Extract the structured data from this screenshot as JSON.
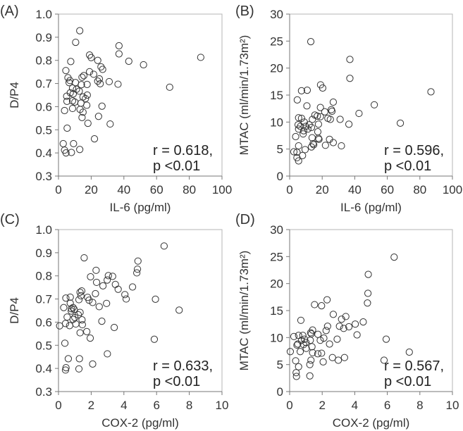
{
  "chart_data": [
    {
      "type": "scatter",
      "panel_label": "(A)",
      "xlabel": "IL-6 (pg/ml)",
      "ylabel": "D/P4",
      "xlim": [
        0,
        100
      ],
      "ylim": [
        0.3,
        1.0
      ],
      "xticks": [
        0,
        20,
        40,
        60,
        80,
        100
      ],
      "xtick_labels": [
        "0",
        "20",
        "40",
        "60",
        "80",
        "100"
      ],
      "yticks": [
        0.3,
        0.4,
        0.5,
        0.6,
        0.7,
        0.8,
        0.9,
        1.0
      ],
      "ytick_labels": [
        "0.3",
        "0.4",
        "0.5",
        "0.6",
        "0.7",
        "0.8",
        "0.9",
        "1.0"
      ],
      "annotation": [
        "r = 0.618,",
        "p <0.01"
      ],
      "points": [
        [
          13,
          0.928
        ],
        [
          10.5,
          0.878
        ],
        [
          37,
          0.863
        ],
        [
          37,
          0.828
        ],
        [
          19,
          0.823
        ],
        [
          20,
          0.812
        ],
        [
          24,
          0.8
        ],
        [
          43,
          0.796
        ],
        [
          52,
          0.781
        ],
        [
          87,
          0.813
        ],
        [
          7.5,
          0.795
        ],
        [
          26,
          0.772
        ],
        [
          27,
          0.761
        ],
        [
          4.5,
          0.756
        ],
        [
          19,
          0.751
        ],
        [
          21.5,
          0.74
        ],
        [
          15.5,
          0.734
        ],
        [
          14.4,
          0.727
        ],
        [
          5.8,
          0.725
        ],
        [
          7,
          0.713
        ],
        [
          25,
          0.72
        ],
        [
          24,
          0.71
        ],
        [
          31,
          0.708
        ],
        [
          6.5,
          0.704
        ],
        [
          10.4,
          0.704
        ],
        [
          17.5,
          0.696
        ],
        [
          25.5,
          0.699
        ],
        [
          36.4,
          0.697
        ],
        [
          68,
          0.684
        ],
        [
          14,
          0.695
        ],
        [
          8.6,
          0.68
        ],
        [
          11,
          0.675
        ],
        [
          12.7,
          0.667
        ],
        [
          7.2,
          0.66
        ],
        [
          9,
          0.655
        ],
        [
          17.6,
          0.65
        ],
        [
          5,
          0.645
        ],
        [
          15,
          0.642
        ],
        [
          16.5,
          0.635
        ],
        [
          8.6,
          0.625
        ],
        [
          5.2,
          0.623
        ],
        [
          10,
          0.62
        ],
        [
          13.7,
          0.615
        ],
        [
          17.3,
          0.606
        ],
        [
          26.6,
          0.602
        ],
        [
          8.6,
          0.592
        ],
        [
          13.2,
          0.588
        ],
        [
          15,
          0.576
        ],
        [
          3.7,
          0.583
        ],
        [
          14.4,
          0.553
        ],
        [
          24.5,
          0.558
        ],
        [
          18,
          0.528
        ],
        [
          31.6,
          0.525
        ],
        [
          5.3,
          0.507
        ],
        [
          22,
          0.461
        ],
        [
          2.9,
          0.44
        ],
        [
          9.2,
          0.44
        ],
        [
          3.7,
          0.412
        ],
        [
          4.6,
          0.4
        ],
        [
          7.9,
          0.402
        ],
        [
          13,
          0.415
        ]
      ]
    },
    {
      "type": "scatter",
      "panel_label": "(B)",
      "xlabel": "IL-6 (pg/ml)",
      "ylabel": "MTAC (ml/min/1.73m²)",
      "xlim": [
        0,
        100
      ],
      "ylim": [
        0,
        30
      ],
      "xticks": [
        0,
        20,
        40,
        60,
        80,
        100
      ],
      "xtick_labels": [
        "0",
        "20",
        "40",
        "60",
        "80",
        "100"
      ],
      "yticks": [
        0,
        5,
        10,
        15,
        20,
        25,
        30
      ],
      "ytick_labels": [
        "0",
        "5",
        "10",
        "15",
        "20",
        "25",
        "30"
      ],
      "annotation": [
        "r = 0.596,",
        "p <0.01"
      ],
      "points": [
        [
          13,
          24.9
        ],
        [
          37,
          21.6
        ],
        [
          37,
          18.1
        ],
        [
          19,
          16.9
        ],
        [
          20.3,
          16.3
        ],
        [
          7.3,
          15.8
        ],
        [
          10.8,
          15.9
        ],
        [
          86.8,
          15.6
        ],
        [
          4.7,
          14.1
        ],
        [
          26.8,
          13.7
        ],
        [
          52,
          13.2
        ],
        [
          10.6,
          13.0
        ],
        [
          18.9,
          12.7
        ],
        [
          25.6,
          12.3
        ],
        [
          26,
          12.0
        ],
        [
          21.6,
          11.9
        ],
        [
          42.6,
          11.6
        ],
        [
          15.5,
          11.3
        ],
        [
          17,
          11.1
        ],
        [
          18.9,
          11.0
        ],
        [
          23.5,
          10.7
        ],
        [
          25,
          10.5
        ],
        [
          31,
          10.5
        ],
        [
          5.5,
          10.8
        ],
        [
          7.3,
          10.7
        ],
        [
          14,
          10.5
        ],
        [
          68,
          9.8
        ],
        [
          36.4,
          9.6
        ],
        [
          17.7,
          9.6
        ],
        [
          9,
          10.0
        ],
        [
          12,
          9.5
        ],
        [
          5.2,
          9.5
        ],
        [
          6.6,
          9.2
        ],
        [
          9.8,
          9.2
        ],
        [
          13.4,
          9.0
        ],
        [
          5.5,
          8.7
        ],
        [
          11.2,
          8.7
        ],
        [
          8.6,
          8.4
        ],
        [
          17.3,
          8.2
        ],
        [
          8.3,
          7.8
        ],
        [
          3.7,
          7.3
        ],
        [
          13.8,
          7.1
        ],
        [
          17.7,
          7.0
        ],
        [
          18,
          6.8
        ],
        [
          24.5,
          6.8
        ],
        [
          26.8,
          6.2
        ],
        [
          14.4,
          6.0
        ],
        [
          14.8,
          5.8
        ],
        [
          22,
          5.7
        ],
        [
          31.8,
          5.6
        ],
        [
          5.5,
          5.6
        ],
        [
          13.4,
          5.4
        ],
        [
          9.5,
          4.9
        ],
        [
          2.6,
          4.5
        ],
        [
          4.5,
          4.4
        ],
        [
          7.9,
          3.8
        ],
        [
          4.5,
          3.4
        ],
        [
          5.5,
          2.8
        ]
      ]
    },
    {
      "type": "scatter",
      "panel_label": "(C)",
      "xlabel": "COX-2 (pg/ml)",
      "ylabel": "D/P4",
      "xlim": [
        0,
        10
      ],
      "ylim": [
        0.3,
        1.0
      ],
      "xticks": [
        0,
        2,
        4,
        6,
        8,
        10
      ],
      "xtick_labels": [
        "0",
        "2",
        "4",
        "6",
        "8",
        "10"
      ],
      "yticks": [
        0.3,
        0.4,
        0.5,
        0.6,
        0.7,
        0.8,
        0.9,
        1.0
      ],
      "ytick_labels": [
        "0.3",
        "0.4",
        "0.5",
        "0.6",
        "0.7",
        "0.8",
        "0.9",
        "1.0"
      ],
      "annotation": [
        "r = 0.633,",
        "p <0.01"
      ],
      "points": [
        [
          6.46,
          0.929
        ],
        [
          1.57,
          0.878
        ],
        [
          4.86,
          0.864
        ],
        [
          4.83,
          0.829
        ],
        [
          4.79,
          0.813
        ],
        [
          2.3,
          0.824
        ],
        [
          1.96,
          0.796
        ],
        [
          3.05,
          0.801
        ],
        [
          3.31,
          0.798
        ],
        [
          2.98,
          0.782
        ],
        [
          2.33,
          0.772
        ],
        [
          2.72,
          0.757
        ],
        [
          4.53,
          0.752
        ],
        [
          3.48,
          0.763
        ],
        [
          3.65,
          0.742
        ],
        [
          1.42,
          0.735
        ],
        [
          1.32,
          0.729
        ],
        [
          2.26,
          0.723
        ],
        [
          1.37,
          0.714
        ],
        [
          4.06,
          0.719
        ],
        [
          0.45,
          0.704
        ],
        [
          0.72,
          0.708
        ],
        [
          4.14,
          0.7
        ],
        [
          5.93,
          0.699
        ],
        [
          1.25,
          0.697
        ],
        [
          1.78,
          0.707
        ],
        [
          1.87,
          0.695
        ],
        [
          2.09,
          0.685
        ],
        [
          2.94,
          0.681
        ],
        [
          2.49,
          0.667
        ],
        [
          0.32,
          0.663
        ],
        [
          0.72,
          0.682
        ],
        [
          0.79,
          0.658
        ],
        [
          0.89,
          0.663
        ],
        [
          0.96,
          0.655
        ],
        [
          0.78,
          0.648
        ],
        [
          7.38,
          0.652
        ],
        [
          1.32,
          0.642
        ],
        [
          1.21,
          0.632
        ],
        [
          0.53,
          0.622
        ],
        [
          1.0,
          0.62
        ],
        [
          1.44,
          0.61
        ],
        [
          0.89,
          0.612
        ],
        [
          2.65,
          0.604
        ],
        [
          0.43,
          0.594
        ],
        [
          1.06,
          0.592
        ],
        [
          1.46,
          0.589
        ],
        [
          0.68,
          0.585
        ],
        [
          0.07,
          0.584
        ],
        [
          3.41,
          0.577
        ],
        [
          1.32,
          0.554
        ],
        [
          1.73,
          0.559
        ],
        [
          1.94,
          0.531
        ],
        [
          5.86,
          0.526
        ],
        [
          0.39,
          0.509
        ],
        [
          2.99,
          0.463
        ],
        [
          0.6,
          0.442
        ],
        [
          1.28,
          0.442
        ],
        [
          2.09,
          0.419
        ],
        [
          0.46,
          0.403
        ],
        [
          0.43,
          0.393
        ],
        [
          1.25,
          0.398
        ]
      ]
    },
    {
      "type": "scatter",
      "panel_label": "(D)",
      "xlabel": "COX-2 (pg/ml)",
      "ylabel": "MTAC (ml/min/1.73m²)",
      "xlim": [
        0,
        10
      ],
      "ylim": [
        0,
        30
      ],
      "xticks": [
        0,
        2,
        4,
        6,
        8,
        10
      ],
      "xtick_labels": [
        "0",
        "2",
        "4",
        "6",
        "8",
        "10"
      ],
      "yticks": [
        0,
        5,
        10,
        15,
        20,
        25,
        30
      ],
      "ytick_labels": [
        "0",
        "5",
        "10",
        "15",
        "20",
        "25",
        "30"
      ],
      "annotation": [
        "r = 0.567,",
        "p <0.01"
      ],
      "points": [
        [
          6.42,
          24.9
        ],
        [
          4.83,
          21.7
        ],
        [
          4.81,
          18.2
        ],
        [
          4.78,
          16.4
        ],
        [
          2.3,
          17.0
        ],
        [
          1.53,
          16.1
        ],
        [
          1.96,
          15.9
        ],
        [
          0.69,
          13.2
        ],
        [
          2.68,
          14.3
        ],
        [
          3.45,
          13.9
        ],
        [
          3.19,
          13.4
        ],
        [
          4.52,
          12.9
        ],
        [
          4.03,
          12.5
        ],
        [
          3.64,
          12.0
        ],
        [
          3.06,
          12.1
        ],
        [
          3.32,
          11.7
        ],
        [
          2.33,
          12.1
        ],
        [
          2.24,
          11.3
        ],
        [
          1.41,
          11.4
        ],
        [
          1.29,
          10.9
        ],
        [
          1.33,
          10.7
        ],
        [
          4.14,
          10.5
        ],
        [
          1.74,
          10.6
        ],
        [
          0.26,
          10.2
        ],
        [
          0.55,
          10.4
        ],
        [
          0.81,
          10.4
        ],
        [
          2.1,
          9.9
        ],
        [
          2.92,
          9.7
        ],
        [
          5.93,
          9.7
        ],
        [
          0.91,
          9.7
        ],
        [
          0.73,
          9.5
        ],
        [
          1.27,
          9.5
        ],
        [
          1.88,
          9.5
        ],
        [
          1.0,
          9.1
        ],
        [
          0.5,
          8.8
        ],
        [
          2.45,
          8.8
        ],
        [
          0.86,
          8.7
        ],
        [
          0.45,
          8.6
        ],
        [
          1.37,
          8.3
        ],
        [
          1.02,
          8.0
        ],
        [
          0.04,
          7.4
        ],
        [
          0.65,
          7.4
        ],
        [
          1.41,
          7.2
        ],
        [
          1.96,
          7.1
        ],
        [
          1.73,
          7.0
        ],
        [
          7.35,
          7.3
        ],
        [
          2.63,
          6.3
        ],
        [
          3.37,
          6.3
        ],
        [
          2.99,
          5.8
        ],
        [
          5.8,
          5.8
        ],
        [
          1.31,
          5.8
        ],
        [
          0.37,
          5.7
        ],
        [
          2.06,
          5.5
        ],
        [
          1.24,
          5.0
        ],
        [
          0.55,
          4.6
        ],
        [
          0.4,
          3.5
        ],
        [
          0.42,
          2.8
        ],
        [
          1.24,
          2.9
        ]
      ]
    }
  ]
}
